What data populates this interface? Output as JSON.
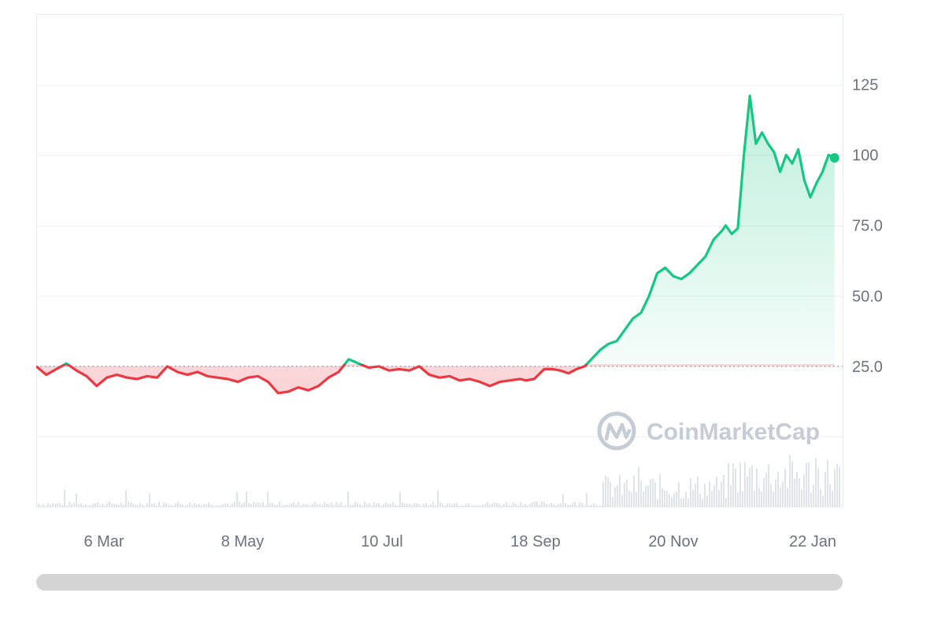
{
  "chart_data": {
    "type": "line",
    "x_labels": [
      "6 Mar",
      "8 May",
      "10 Jul",
      "18 Sep",
      "20 Nov",
      "22 Jan"
    ],
    "y_ticks": [
      "25.0",
      "50.0",
      "75.0",
      "100",
      "125"
    ],
    "y_tick_values": [
      25,
      50,
      75,
      100,
      125
    ],
    "ylim": [
      -25,
      150
    ],
    "baseline": 25,
    "grid": true,
    "above_color": "#16c784",
    "below_color": "#ea3943",
    "volume_color": "#dfe3ea",
    "series": [
      {
        "x": [
          0,
          5,
          10,
          15,
          20,
          25,
          30,
          35,
          40,
          45,
          50,
          55,
          60,
          65,
          70,
          75,
          80,
          85,
          90,
          95,
          100,
          105,
          110,
          115,
          120,
          125,
          130,
          135,
          140,
          145,
          150,
          155,
          160,
          165,
          170,
          175,
          180,
          185,
          190,
          195,
          200,
          205,
          210,
          215,
          220,
          225,
          230,
          235,
          240,
          243,
          247,
          252,
          256,
          260,
          264,
          268,
          272,
          276,
          280,
          284,
          288,
          292,
          296,
          300,
          304,
          308,
          312,
          316,
          320,
          324,
          328,
          332,
          336,
          340,
          342,
          345,
          348,
          351,
          354,
          357,
          360,
          363,
          366,
          369,
          372,
          375,
          378,
          381,
          384,
          387,
          390,
          393,
          396
        ],
        "values": [
          25.0,
          22.0,
          24.0,
          26.0,
          23.5,
          21.5,
          18.0,
          21.0,
          22.0,
          21.0,
          20.5,
          21.5,
          21.0,
          25.0,
          23.0,
          22.0,
          23.0,
          21.5,
          21.0,
          20.5,
          19.5,
          21.0,
          21.5,
          19.5,
          15.5,
          16.0,
          17.5,
          16.5,
          18.0,
          21.0,
          23.0,
          27.5,
          26.0,
          24.5,
          25.0,
          23.5,
          24.0,
          23.5,
          25.0,
          22.0,
          21.0,
          21.5,
          20.0,
          20.5,
          19.5,
          18.0,
          19.5,
          20.0,
          20.5,
          20.0,
          20.5,
          24.0,
          24.0,
          23.5,
          22.5,
          24.0,
          25.0,
          28.0,
          31.0,
          33.0,
          34.0,
          38.0,
          42.0,
          44.0,
          50.0,
          58.0,
          60.0,
          57.0,
          56.0,
          58.0,
          61.0,
          64.0,
          70.0,
          73.0,
          75.0,
          72.0,
          74.0,
          100.0,
          121.0,
          104.0,
          108.0,
          104.0,
          101.0,
          94.0,
          100.0,
          97.0,
          102.0,
          91.0,
          85.0,
          90.0,
          94.0,
          100.0,
          99.0
        ]
      }
    ]
  },
  "watermark": {
    "text": "CoinMarketCap"
  }
}
